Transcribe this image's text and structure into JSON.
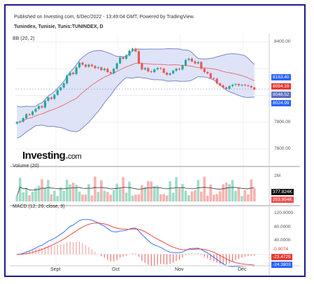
{
  "header": {
    "published": "Published on Investing.com, 6/Dec/2022 - 13:49:04 GMT, Powered by TradingView.",
    "symbol": "Tunindex, Tunisie, Tunis:TUNINDEX, D"
  },
  "logo": {
    "text": "Investing",
    "suffix": "com"
  },
  "panes": {
    "bb_label": "BB (20, 2)",
    "volume_label": "Volume (20)",
    "macd_label": "MACD (12, 26, close, 9)"
  },
  "price_axis": [
    "8400.00",
    "8000.00",
    "7800.00",
    "7600.00"
  ],
  "price_tags": [
    {
      "value": "8163.40",
      "color": "#2962ff"
    },
    {
      "value": "8094.19",
      "color": "#e53935"
    },
    {
      "value": "8048.52",
      "color": "#5c6bc0"
    },
    {
      "value": "8024.99",
      "color": "#2962ff"
    }
  ],
  "volume_axis": [
    "2M"
  ],
  "volume_tags": [
    {
      "value": "377.824K",
      "color": "#111111"
    },
    {
      "value": "203.954K",
      "color": "#ef5350"
    }
  ],
  "macd_axis": [
    "120.0000",
    "80.0000",
    "40.0000"
  ],
  "macd_tags": [
    {
      "value": "-0.9074",
      "color": "#ffffff",
      "text": "#e53935"
    },
    {
      "value": "-23.4729",
      "color": "#e53935",
      "text": "#ffffff"
    },
    {
      "value": "-24.3803",
      "color": "#2962ff",
      "text": "#ffffff"
    }
  ],
  "time_axis": [
    "Sept",
    "Oct",
    "Nov",
    "Déc"
  ],
  "colors": {
    "up": "#26a69a",
    "down": "#ef5350",
    "band_fill": "#dfe3f8",
    "band_line": "#7986cb",
    "basis": "#e57373",
    "macd": "#2962ff",
    "signal": "#e53935",
    "frame": "#1c1c8c"
  },
  "chart_data": {
    "type": "candlestick",
    "closes": [
      7800,
      7805,
      7830,
      7860,
      7855,
      7880,
      7900,
      7920,
      7910,
      7960,
      7985,
      7975,
      8005,
      8040,
      8060,
      8090,
      8150,
      8170,
      8160,
      8210,
      8245,
      8230,
      8215,
      8230,
      8220,
      8205,
      8210,
      8190,
      8200,
      8175,
      8165,
      8200,
      8240,
      8285,
      8275,
      8300,
      8335,
      8350,
      8330,
      8240,
      8195,
      8205,
      8180,
      8175,
      8195,
      8205,
      8200,
      8170,
      8155,
      8165,
      8185,
      8200,
      8195,
      8225,
      8265,
      8275,
      8255,
      8240,
      8250,
      8200,
      8175,
      8165,
      8130,
      8125,
      8090,
      8075,
      8060,
      8050,
      8070,
      8080,
      8085,
      8075,
      8080,
      8075,
      8070,
      8060,
      8045
    ]
  }
}
